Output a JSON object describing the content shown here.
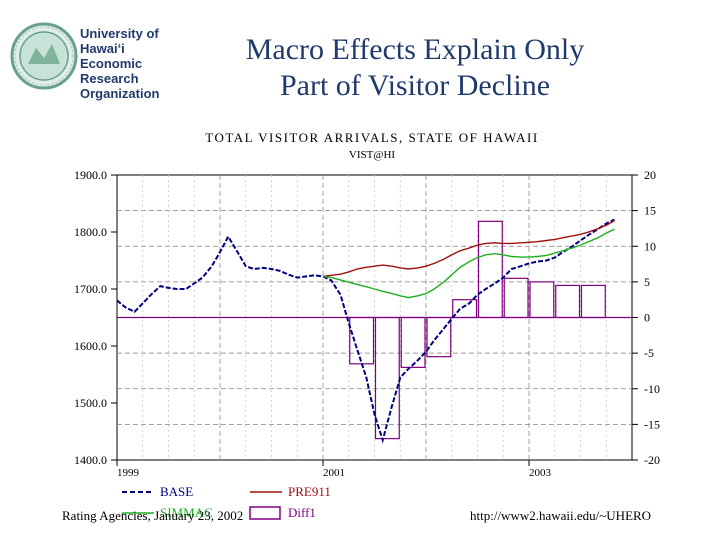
{
  "logo": {
    "lines": [
      "University of",
      "Hawai‘i",
      "Economic",
      "Research",
      "Organization"
    ],
    "icon": "university-seal-icon"
  },
  "slide": {
    "title_line1": "Macro Effects Explain Only",
    "title_line2": "Part of Visitor Decline",
    "title_color": "#1f3a6b"
  },
  "footer": {
    "left": "Rating Agencies, January 23, 2002",
    "right": "http://www2.hawaii.edu/~UHERO"
  },
  "chart_data": {
    "type": "line",
    "title": "TOTAL VISITOR ARRIVALS, STATE OF HAWAII",
    "subtitle": "VIST@HI",
    "x_tick_labels": [
      "1999",
      "2001",
      "2003"
    ],
    "x_ticks_at": [
      1999.0,
      2001.0,
      2003.0
    ],
    "xlim": [
      1999.0,
      2004.0
    ],
    "left_axis": {
      "ylim": [
        1400,
        1900
      ],
      "ticks": [
        "1900.0",
        "1800.0",
        "1700.0",
        "1600.0",
        "1500.0",
        "1400.0"
      ],
      "tick_values": [
        1900,
        1800,
        1700,
        1600,
        1500,
        1400
      ]
    },
    "right_axis": {
      "ylim": [
        -20,
        20
      ],
      "ticks": [
        "20",
        "15",
        "10",
        "5",
        "0",
        "-5",
        "-10",
        "-15",
        "-20"
      ],
      "tick_values": [
        20,
        15,
        10,
        5,
        0,
        -5,
        -10,
        -15,
        -20
      ]
    },
    "grid": true,
    "series": [
      {
        "name": "BASE",
        "axis": "left",
        "style": "dashed",
        "color": "#000080",
        "x": [
          1999.0,
          1999.08,
          1999.17,
          1999.25,
          1999.33,
          1999.42,
          1999.5,
          1999.58,
          1999.67,
          1999.75,
          1999.83,
          1999.92,
          2000.0,
          2000.08,
          2000.17,
          2000.25,
          2000.33,
          2000.42,
          2000.5,
          2000.58,
          2000.67,
          2000.75,
          2000.83,
          2000.92,
          2001.0,
          2001.08,
          2001.17,
          2001.25,
          2001.33,
          2001.42,
          2001.5,
          2001.58,
          2001.67,
          2001.75,
          2001.83,
          2001.92,
          2002.0,
          2002.08,
          2002.17,
          2002.25,
          2002.33,
          2002.42,
          2002.5,
          2002.58,
          2002.67,
          2002.75,
          2002.83,
          2002.92,
          2003.0,
          2003.08,
          2003.17,
          2003.25,
          2003.33,
          2003.42,
          2003.5,
          2003.58,
          2003.67,
          2003.75,
          2003.83
        ],
        "y": [
          1680,
          1668,
          1660,
          1675,
          1690,
          1705,
          1702,
          1700,
          1700,
          1710,
          1720,
          1740,
          1765,
          1792,
          1765,
          1740,
          1735,
          1737,
          1735,
          1732,
          1725,
          1720,
          1722,
          1724,
          1722,
          1715,
          1690,
          1640,
          1595,
          1545,
          1480,
          1435,
          1495,
          1545,
          1560,
          1575,
          1590,
          1610,
          1630,
          1648,
          1665,
          1675,
          1690,
          1700,
          1710,
          1720,
          1735,
          1740,
          1745,
          1748,
          1750,
          1755,
          1765,
          1775,
          1785,
          1795,
          1805,
          1815,
          1822
        ]
      },
      {
        "name": "PRE911",
        "axis": "left",
        "style": "solid",
        "color": "#a01010",
        "x": [
          2001.0,
          2001.08,
          2001.17,
          2001.25,
          2001.33,
          2001.42,
          2001.5,
          2001.58,
          2001.67,
          2001.75,
          2001.83,
          2001.92,
          2002.0,
          2002.08,
          2002.17,
          2002.25,
          2002.33,
          2002.42,
          2002.5,
          2002.58,
          2002.67,
          2002.75,
          2002.83,
          2002.92,
          2003.0,
          2003.08,
          2003.17,
          2003.25,
          2003.33,
          2003.42,
          2003.5,
          2003.58,
          2003.67,
          2003.75,
          2003.83
        ],
        "y": [
          1722,
          1724,
          1726,
          1730,
          1735,
          1738,
          1740,
          1742,
          1740,
          1737,
          1735,
          1737,
          1740,
          1745,
          1752,
          1760,
          1767,
          1772,
          1777,
          1780,
          1781,
          1780,
          1780,
          1781,
          1782,
          1783,
          1785,
          1787,
          1790,
          1793,
          1796,
          1800,
          1806,
          1812,
          1820
        ]
      },
      {
        "name": "",
        "axis": "left",
        "style": "solid",
        "color": "#20b020",
        "x": [
          2001.0,
          2001.08,
          2001.17,
          2001.25,
          2001.33,
          2001.42,
          2001.5,
          2001.58,
          2001.67,
          2001.75,
          2001.83,
          2001.92,
          2002.0,
          2002.08,
          2002.17,
          2002.25,
          2002.33,
          2002.42,
          2002.5,
          2002.58,
          2002.67,
          2002.75,
          2002.83,
          2002.92,
          2003.0,
          2003.08,
          2003.17,
          2003.25,
          2003.33,
          2003.42,
          2003.5,
          2003.58,
          2003.67,
          2003.75,
          2003.83
        ],
        "y": [
          1722,
          1720,
          1716,
          1712,
          1708,
          1704,
          1700,
          1696,
          1692,
          1688,
          1685,
          1688,
          1692,
          1700,
          1712,
          1725,
          1738,
          1748,
          1755,
          1760,
          1762,
          1760,
          1757,
          1756,
          1756,
          1757,
          1759,
          1763,
          1767,
          1772,
          1777,
          1783,
          1790,
          1798,
          1805
        ]
      }
    ],
    "bars": {
      "name": "Diff1",
      "axis": "right",
      "color": "#800080",
      "x_start": [
        2001.25,
        2001.5,
        2001.75,
        2002.0,
        2002.25,
        2002.5,
        2002.75,
        2003.0,
        2003.25,
        2003.5
      ],
      "x_end": [
        2001.5,
        2001.75,
        2002.0,
        2002.25,
        2002.5,
        2002.75,
        2003.0,
        2003.25,
        2003.5,
        2003.75
      ],
      "values": [
        -6.5,
        -17,
        -7,
        -5.5,
        2.5,
        13.5,
        5.5,
        5,
        4.5,
        4.5
      ]
    },
    "legend": [
      {
        "label": "BASE",
        "style": "dashed",
        "color": "#000080"
      },
      {
        "label": "PRE911",
        "style": "solid",
        "color": "#a01010"
      },
      {
        "label": "SIMMAC",
        "style": "solid",
        "color": "#20b020"
      },
      {
        "label": "Diff1",
        "style": "box",
        "color": "#800080"
      }
    ],
    "legend_position": "bottom",
    "plot_bg": "#ffffff",
    "zero_line_color": "#800080"
  }
}
